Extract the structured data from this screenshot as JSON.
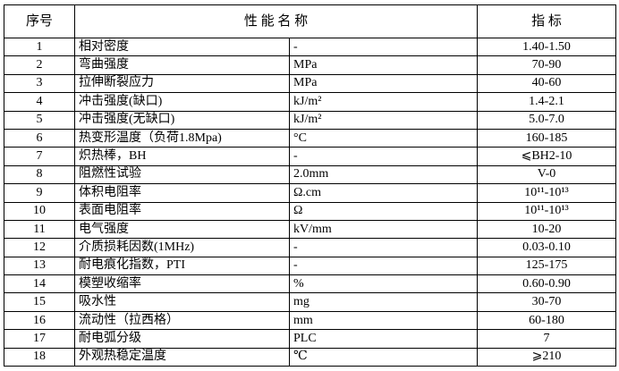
{
  "table": {
    "header": [
      "序号",
      "性 能 名 称",
      "指 标"
    ],
    "rows": [
      [
        "1",
        "相对密度",
        "-",
        "1.40-1.50"
      ],
      [
        "2",
        "弯曲强度",
        "MPa",
        "70-90"
      ],
      [
        "3",
        "拉伸断裂应力",
        "MPa",
        "40-60"
      ],
      [
        "4",
        "冲击强度(缺口)",
        "kJ/m²",
        "1.4-2.1"
      ],
      [
        "5",
        "冲击强度(无缺口)",
        "kJ/m²",
        "5.0-7.0"
      ],
      [
        "6",
        "热变形温度（负荷1.8Mpa)",
        "°C",
        "160-185"
      ],
      [
        "7",
        "炽热棒，BH",
        "-",
        "⩽BH2-10"
      ],
      [
        "8",
        "阻燃性试验",
        "2.0mm",
        "V-0"
      ],
      [
        "9",
        "体积电阻率",
        "Ω.cm",
        "10¹¹-10¹³"
      ],
      [
        "10",
        "表面电阻率",
        "Ω",
        "10¹¹-10¹³"
      ],
      [
        "11",
        "电气强度",
        "kV/mm",
        "10-20"
      ],
      [
        "12",
        "介质损耗因数(1MHz)",
        "-",
        "0.03-0.10"
      ],
      [
        "13",
        "耐电痕化指数，PTI",
        "-",
        "125-175"
      ],
      [
        "14",
        "模塑收缩率",
        "%",
        "0.60-0.90"
      ],
      [
        "15",
        "吸水性",
        "mg",
        "30-70"
      ],
      [
        "16",
        "流动性（拉西格）",
        "mm",
        "60-180"
      ],
      [
        "17",
        "耐电弧分级",
        "PLC",
        "7"
      ],
      [
        "18",
        "外观热稳定温度",
        "℃",
        "⩾210"
      ]
    ]
  }
}
